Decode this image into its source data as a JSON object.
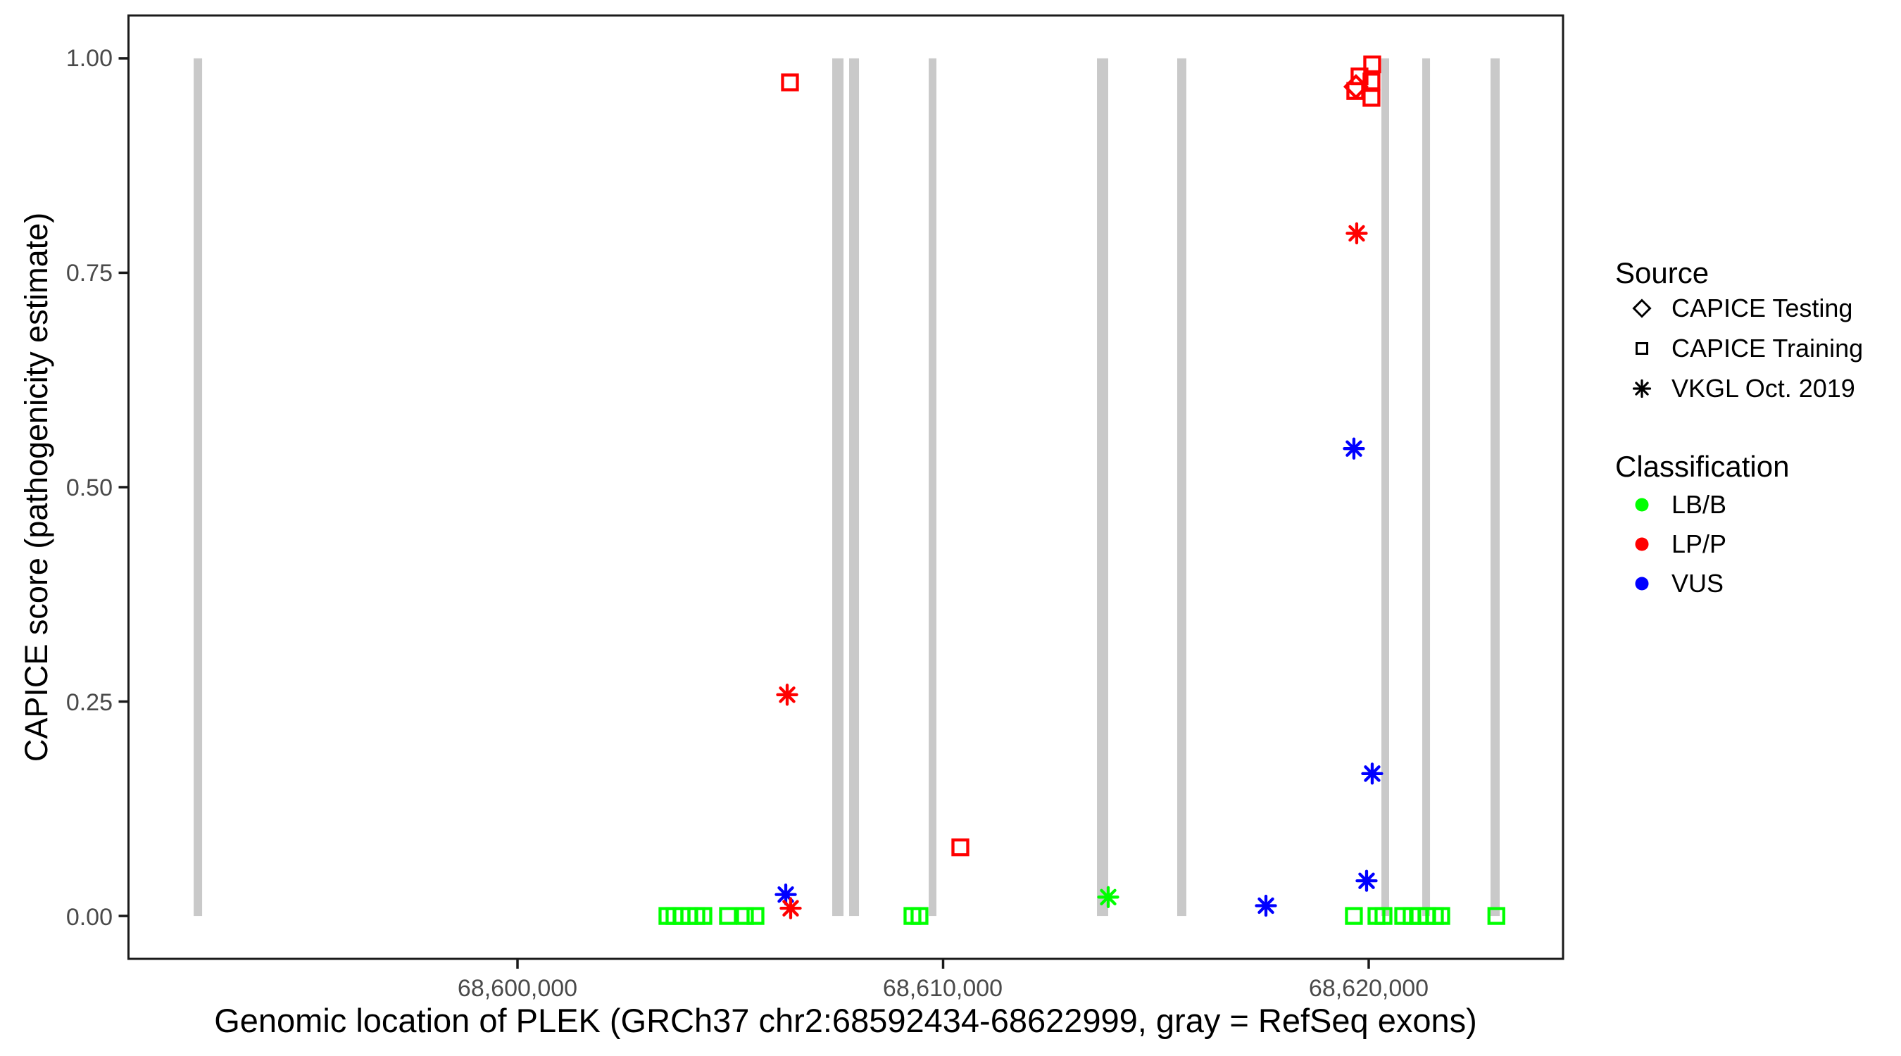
{
  "y_axis": {
    "title": "CAPICE score (pathogenicity estimate)",
    "ticks": [
      "1.00",
      "0.75",
      "0.50",
      "0.25",
      "0.00"
    ],
    "tick_values": [
      1.0,
      0.75,
      0.5,
      0.25,
      0.0
    ]
  },
  "x_axis": {
    "title": "Genomic location of PLEK (GRCh37 chr2:68592434-68622999, gray = RefSeq exons)",
    "ticks": [
      "68,600,000",
      "68,610,000",
      "68,620,000"
    ],
    "tick_values": [
      68600000,
      68610000,
      68620000
    ]
  },
  "legend": {
    "source": {
      "title": "Source",
      "items": [
        {
          "label": "CAPICE Testing",
          "shape": "diamond"
        },
        {
          "label": "CAPICE Training",
          "shape": "square"
        },
        {
          "label": "VKGL Oct. 2019",
          "shape": "asterisk"
        }
      ]
    },
    "classification": {
      "title": "Classification",
      "items": [
        {
          "label": "LB/B",
          "color": "#00FF00"
        },
        {
          "label": "LP/P",
          "color": "#FF0000"
        },
        {
          "label": "VUS",
          "color": "#0000FF"
        }
      ]
    }
  },
  "chart_data": {
    "type": "scatter",
    "title": "",
    "xlabel": "Genomic location of PLEK (GRCh37 chr2:68592434-68622999, gray = RefSeq exons)",
    "ylabel": "CAPICE score (pathogenicity estimate)",
    "xlim": [
      68590860,
      68624566
    ],
    "ylim": [
      -0.05,
      1.05
    ],
    "grid": false,
    "legend_position": "right",
    "exon_color": "#C9C9C9",
    "axis_color": "#1A1A1A",
    "class_colors": {
      "LB/B": "#00FF00",
      "LP/P": "#FF0000",
      "VUS": "#0000FF"
    },
    "exons": [
      [
        68592391,
        68592590
      ],
      [
        68607395,
        68607660
      ],
      [
        68607792,
        68608024
      ],
      [
        68609662,
        68609843
      ],
      [
        68613615,
        68613879
      ],
      [
        68615500,
        68615715
      ],
      [
        68620298,
        68620480
      ],
      [
        68621258,
        68621440
      ],
      [
        68622862,
        68623077
      ]
    ],
    "series": [
      {
        "name": "CAPICE Testing",
        "shape": "diamond",
        "points": [
          {
            "x": 68619701,
            "y": 0.967,
            "cls": "LP/P"
          }
        ]
      },
      {
        "name": "CAPICE Training",
        "shape": "square",
        "points": [
          {
            "x": 68606402,
            "y": 0.972,
            "cls": "LP/P"
          },
          {
            "x": 68610405,
            "y": 0.08,
            "cls": "LP/P"
          },
          {
            "x": 68619685,
            "y": 0.962,
            "cls": "LP/P"
          },
          {
            "x": 68619784,
            "y": 0.979,
            "cls": "LP/P"
          },
          {
            "x": 68620065,
            "y": 0.973,
            "cls": "LP/P"
          },
          {
            "x": 68620065,
            "y": 0.954,
            "cls": "LP/P"
          },
          {
            "x": 68620082,
            "y": 0.993,
            "cls": "LP/P"
          },
          {
            "x": 68603523,
            "y": 0.0,
            "cls": "LB/B"
          },
          {
            "x": 68603689,
            "y": 0.0,
            "cls": "LB/B"
          },
          {
            "x": 68603854,
            "y": 0.0,
            "cls": "LB/B"
          },
          {
            "x": 68604036,
            "y": 0.0,
            "cls": "LB/B"
          },
          {
            "x": 68604202,
            "y": 0.0,
            "cls": "LB/B"
          },
          {
            "x": 68604367,
            "y": 0.0,
            "cls": "LB/B"
          },
          {
            "x": 68604946,
            "y": 0.0,
            "cls": "LB/B"
          },
          {
            "x": 68605343,
            "y": 0.0,
            "cls": "LB/B"
          },
          {
            "x": 68605591,
            "y": 0.0,
            "cls": "LB/B"
          },
          {
            "x": 68609280,
            "y": 0.0,
            "cls": "LB/B"
          },
          {
            "x": 68609445,
            "y": 0.0,
            "cls": "LB/B"
          },
          {
            "x": 68619652,
            "y": 0.0,
            "cls": "LB/B"
          },
          {
            "x": 68620182,
            "y": 0.0,
            "cls": "LB/B"
          },
          {
            "x": 68620347,
            "y": 0.0,
            "cls": "LB/B"
          },
          {
            "x": 68620811,
            "y": 0.0,
            "cls": "LB/B"
          },
          {
            "x": 68621009,
            "y": 0.0,
            "cls": "LB/B"
          },
          {
            "x": 68621191,
            "y": 0.0,
            "cls": "LB/B"
          },
          {
            "x": 68621373,
            "y": 0.0,
            "cls": "LB/B"
          },
          {
            "x": 68621555,
            "y": 0.0,
            "cls": "LB/B"
          },
          {
            "x": 68621704,
            "y": 0.0,
            "cls": "LB/B"
          },
          {
            "x": 68622999,
            "y": 0.0,
            "cls": "LB/B"
          }
        ]
      },
      {
        "name": "VKGL Oct. 2019",
        "shape": "asterisk",
        "points": [
          {
            "x": 68606303,
            "y": 0.025,
            "cls": "VUS"
          },
          {
            "x": 68606336,
            "y": 0.258,
            "cls": "LP/P"
          },
          {
            "x": 68606418,
            "y": 0.009,
            "cls": "LP/P"
          },
          {
            "x": 68613879,
            "y": 0.022,
            "cls": "LB/B"
          },
          {
            "x": 68617585,
            "y": 0.012,
            "cls": "VUS"
          },
          {
            "x": 68619652,
            "y": 0.545,
            "cls": "VUS"
          },
          {
            "x": 68619718,
            "y": 0.796,
            "cls": "LP/P"
          },
          {
            "x": 68619950,
            "y": 0.041,
            "cls": "VUS"
          },
          {
            "x": 68620082,
            "y": 0.166,
            "cls": "VUS"
          }
        ]
      }
    ]
  }
}
